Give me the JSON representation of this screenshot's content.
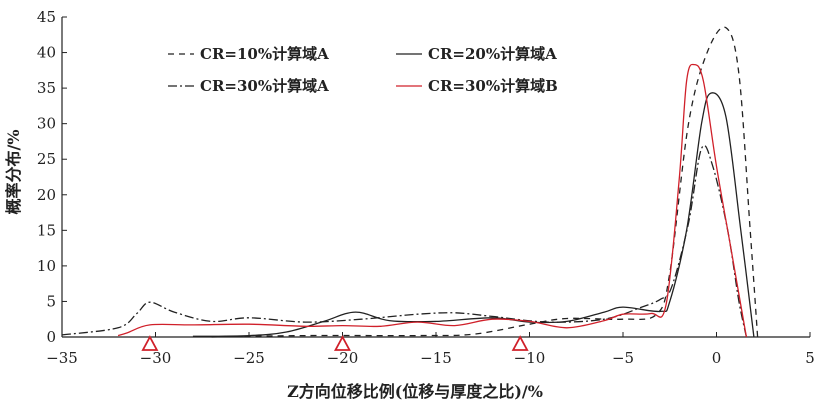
{
  "chart_data": {
    "type": "line",
    "xlabel": "Z方向位移比例(位移与厚度之比)/%",
    "ylabel": "概率分布/%",
    "xlim": [
      -35,
      5
    ],
    "ylim": [
      0,
      45
    ],
    "xticks": [
      -35,
      -30,
      -25,
      -20,
      -15,
      -10,
      -5,
      0,
      5
    ],
    "yticks": [
      0,
      5,
      10,
      15,
      20,
      25,
      30,
      35,
      40,
      45
    ],
    "xtick_labels": [
      "−35",
      "−30",
      "−25",
      "−20",
      "−15",
      "−10",
      "−5",
      "0",
      "5"
    ],
    "ytick_labels": [
      "0",
      "5",
      "10",
      "15",
      "20",
      "25",
      "30",
      "35",
      "40",
      "45"
    ],
    "legend_position": "top-left",
    "series": [
      {
        "name": "CR=10%计算域A",
        "color": "#222222",
        "dash": "6,5",
        "points": [
          [
            -27,
            0
          ],
          [
            -22,
            0.2
          ],
          [
            -16,
            0.2
          ],
          [
            -13,
            0.4
          ],
          [
            -10,
            1.8
          ],
          [
            -8,
            2.6
          ],
          [
            -5,
            2.5
          ],
          [
            -3.2,
            3.2
          ],
          [
            -2.5,
            9
          ],
          [
            -1.5,
            30
          ],
          [
            -0.5,
            40
          ],
          [
            0.5,
            43.5
          ],
          [
            1.2,
            37
          ],
          [
            1.8,
            15
          ],
          [
            2.2,
            0
          ]
        ]
      },
      {
        "name": "CR=20%计算域A",
        "color": "#222222",
        "dash": "",
        "points": [
          [
            -28,
            0.1
          ],
          [
            -25,
            0.2
          ],
          [
            -23,
            0.7
          ],
          [
            -21,
            2.2
          ],
          [
            -19.3,
            3.5
          ],
          [
            -17.5,
            2.3
          ],
          [
            -15,
            2.2
          ],
          [
            -12,
            2.7
          ],
          [
            -10,
            2.1
          ],
          [
            -8,
            2.2
          ],
          [
            -6,
            3.5
          ],
          [
            -5,
            4.2
          ],
          [
            -3,
            3.6
          ],
          [
            -2.5,
            5
          ],
          [
            -1.6,
            15
          ],
          [
            -0.8,
            30
          ],
          [
            -0.3,
            34.3
          ],
          [
            0.5,
            31
          ],
          [
            1.3,
            15
          ],
          [
            2,
            0
          ]
        ]
      },
      {
        "name": "CR=30%计算域A",
        "color": "#222222",
        "dash": "9,3,2,3",
        "points": [
          [
            -35,
            0.3
          ],
          [
            -32,
            1.3
          ],
          [
            -31,
            3.3
          ],
          [
            -30.3,
            4.9
          ],
          [
            -29,
            3.5
          ],
          [
            -27,
            2.2
          ],
          [
            -25,
            2.7
          ],
          [
            -22,
            2.1
          ],
          [
            -19,
            2.5
          ],
          [
            -16,
            3.2
          ],
          [
            -14,
            3.4
          ],
          [
            -12,
            2.9
          ],
          [
            -9,
            2.1
          ],
          [
            -6,
            2.5
          ],
          [
            -4,
            4.2
          ],
          [
            -3,
            5.3
          ],
          [
            -2.4,
            7
          ],
          [
            -1.5,
            16
          ],
          [
            -0.8,
            26.5
          ],
          [
            -0.2,
            24
          ],
          [
            0.6,
            15
          ],
          [
            1.2,
            5
          ],
          [
            1.6,
            0
          ]
        ]
      },
      {
        "name": "CR=30%计算域B",
        "color": "#d0202a",
        "dash": "",
        "points": [
          [
            -32,
            0.2
          ],
          [
            -31.5,
            0.6
          ],
          [
            -30.3,
            1.7
          ],
          [
            -28,
            1.7
          ],
          [
            -25,
            1.8
          ],
          [
            -22,
            1.5
          ],
          [
            -20,
            1.6
          ],
          [
            -18,
            1.5
          ],
          [
            -16,
            2.1
          ],
          [
            -14,
            1.6
          ],
          [
            -12,
            2.5
          ],
          [
            -10,
            2.2
          ],
          [
            -8,
            1.3
          ],
          [
            -6,
            2.3
          ],
          [
            -5,
            3.2
          ],
          [
            -3.5,
            3.3
          ],
          [
            -2.7,
            4.5
          ],
          [
            -2,
            22
          ],
          [
            -1.6,
            36
          ],
          [
            -1.2,
            38.3
          ],
          [
            -0.7,
            36
          ],
          [
            0,
            24
          ],
          [
            0.8,
            12
          ],
          [
            1.6,
            0
          ]
        ]
      }
    ],
    "markers": {
      "shape": "triangle",
      "color": "#d0202a",
      "x": [
        -30.3,
        -20,
        -10.5
      ]
    }
  }
}
